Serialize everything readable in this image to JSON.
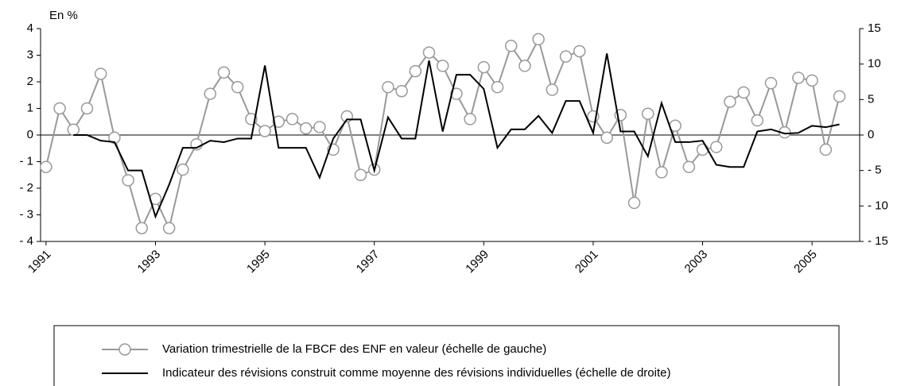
{
  "chart_data": {
    "type": "line",
    "y_axis_label": "En %",
    "x": [
      1991,
      1991.25,
      1991.5,
      1991.75,
      1992,
      1992.25,
      1992.5,
      1992.75,
      1993,
      1993.25,
      1993.5,
      1993.75,
      1994,
      1994.25,
      1994.5,
      1994.75,
      1995,
      1995.25,
      1995.5,
      1995.75,
      1996,
      1996.25,
      1996.5,
      1996.75,
      1997,
      1997.25,
      1997.5,
      1997.75,
      1998,
      1998.25,
      1998.5,
      1998.75,
      1999,
      1999.25,
      1999.5,
      1999.75,
      2000,
      2000.25,
      2000.5,
      2000.75,
      2001,
      2001.25,
      2001.5,
      2001.75,
      2002,
      2002.25,
      2002.5,
      2002.75,
      2003,
      2003.25,
      2003.5,
      2003.75,
      2004,
      2004.25,
      2004.5,
      2004.75,
      2005,
      2005.25,
      2005.5
    ],
    "series": [
      {
        "name": "Variation trimestrielle de la FBCF des ENF en valeur (échelle de gauche)",
        "color": "#999999",
        "axis": "y",
        "marker": true,
        "values": [
          -1.2,
          1.0,
          0.2,
          1.0,
          2.3,
          -0.1,
          -1.7,
          -3.5,
          -2.4,
          -3.5,
          -1.3,
          -0.35,
          1.55,
          2.35,
          1.8,
          0.6,
          0.15,
          0.5,
          0.6,
          0.25,
          0.3,
          -0.55,
          0.7,
          -1.5,
          -1.3,
          1.8,
          1.65,
          2.4,
          3.1,
          2.6,
          1.55,
          0.6,
          2.55,
          1.8,
          3.35,
          2.6,
          3.6,
          1.7,
          2.95,
          3.15,
          0.7,
          -0.1,
          0.75,
          -2.55,
          0.8,
          -1.4,
          0.35,
          -1.2,
          -0.55,
          -0.45,
          1.25,
          1.6,
          0.55,
          1.95,
          0.1,
          2.15,
          2.05,
          -0.55,
          1.45
        ]
      },
      {
        "name": "Indicateur des révisions construit comme moyenne des révisions individuelles (échelle de droite)",
        "color": "#000000",
        "axis": "y2",
        "marker": false,
        "values": [
          null,
          null,
          0,
          0,
          -0.8,
          -1,
          -5,
          -5,
          -11.5,
          -7,
          -1.8,
          -1.8,
          -0.8,
          -1,
          -0.5,
          -0.5,
          9.8,
          -1.8,
          -1.8,
          -1.8,
          -6,
          -0.5,
          2.2,
          2.2,
          -5,
          2.5,
          -0.5,
          -0.5,
          10.5,
          0.5,
          8.5,
          8.5,
          6.5,
          -1.8,
          0.8,
          0.8,
          2.7,
          0.3,
          4.8,
          4.8,
          0.3,
          11.5,
          0.5,
          0.5,
          -3,
          4.5,
          -1,
          -1,
          -0.8,
          -4.2,
          -4.5,
          -4.5,
          0.5,
          0.8,
          0.2,
          0.3,
          1.3,
          1.1,
          1.5
        ]
      }
    ],
    "xlim": [
      1990.9,
      2005.87
    ],
    "xticks": [
      1991,
      1993,
      1995,
      1997,
      1999,
      2001,
      2003,
      2005
    ],
    "ylim": [
      -4,
      4
    ],
    "yticks": [
      {
        "value": -4,
        "label": "- 4"
      },
      {
        "value": -3,
        "label": "- 3"
      },
      {
        "value": -2,
        "label": "- 2"
      },
      {
        "value": -1,
        "label": "- 1"
      },
      0,
      1,
      2,
      3,
      4
    ],
    "y2lim": [
      -15,
      15
    ],
    "y2ticks": [
      {
        "value": -15,
        "label": "- 15"
      },
      {
        "value": -10,
        "label": "- 10"
      },
      {
        "value": -5,
        "label": "- 5"
      },
      0,
      5,
      10,
      15
    ],
    "grid": false
  }
}
